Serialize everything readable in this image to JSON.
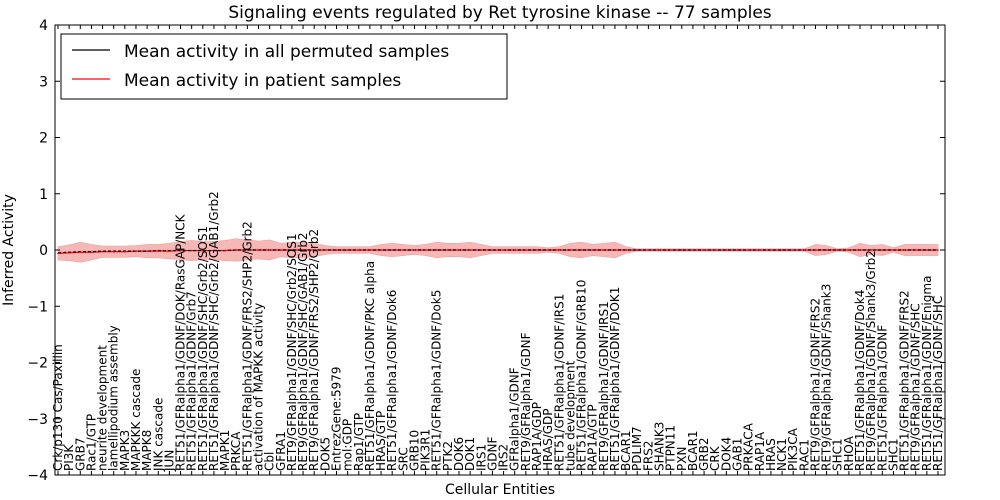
{
  "chart_data": {
    "type": "line",
    "title": "Signaling events regulated by Ret tyrosine kinase -- 77 samples",
    "xlabel": "Cellular Entities",
    "ylabel": "Inferred Activity",
    "ylim": [
      -4,
      4
    ],
    "yticks": [
      -4,
      -3,
      -2,
      -1,
      0,
      1,
      2,
      3,
      4
    ],
    "ytick_labels": [
      "−4",
      "−3",
      "−2",
      "−1",
      "0",
      "1",
      "2",
      "3",
      "4"
    ],
    "grid": false,
    "legend_position": "top-left",
    "colors": {
      "permuted": "#000000",
      "patient": "#ff0000",
      "patient_band": "#f4a0a0",
      "permuted_band": "#c8c8e6"
    },
    "categories": [
      "Crk/p130 Cas/Paxillin",
      "PI3K",
      "GRB7",
      "Rac1/GTP",
      "neurite development",
      "lamellipodium assembly",
      "MAPK3",
      "MAPKKK cascade",
      "MAPK8",
      "JNK cascade",
      "JUN",
      "RET51/GFRalpha1/GDNF/DOK/RasGAP/NCK",
      "RET51/GFRalpha1/GDNF/Grb7",
      "RET51/GFRalpha1/GDNF/SHC/Grb2/SOS1",
      "RET51/GFRalpha1/GDNF/SHC/Grb2/GAB1/Grb2",
      "MAPK1",
      "PRKCA",
      "RET51/GFRalpha1/GDNF/FRS2/SHP2/Grb2",
      "activation of MAPKK activity",
      "Cbl",
      "GFRA1",
      "RET9/GFRalpha1/GDNF/SHC/Grb2/SOS1",
      "RET9/GFRalpha1/GDNF/SHC/GAB1/Grb2",
      "RET9/GFRalpha1/GDNF/FRS2/SHP2/Grb2",
      "DOK5",
      "EntrezGene:5979",
      "mol:GDP",
      "Rap1/GTP",
      "RET51/GFRalpha1/GDNF/PKC alpha",
      "HRAS/GTP",
      "RET51/GFRalpha1/GDNF/Dok6",
      "SRC",
      "GRB10",
      "PIK3R1",
      "RET51/GFRalpha1/GDNF/Dok5",
      "PTK2",
      "DOK6",
      "DOK1",
      "IRS1",
      "GDNF",
      "IRS2",
      "GFRalpha1/GDNF",
      "RET9/GFRalpha1/GDNF",
      "RAP1A/GDP",
      "HRAS/GDP",
      "RET51/GFRalpha1/GDNF/IRS1",
      "tube development",
      "RET51/GFRalpha1/GDNF/GRB10",
      "RAP1A/GTP",
      "RET9/GFRalpha1/GDNF/IRS1",
      "RET51/GFRalpha1/GDNF/DOK1",
      "BCAR1",
      "PDLIM7",
      "FRS2",
      "SHANK3",
      "PTPN11",
      "PXN",
      "BCAR1",
      "GRB2",
      "CRK",
      "DOK4",
      "GAB1",
      "PRKACA",
      "RAP1A",
      "HRAS",
      "NCK1",
      "PIK3CA",
      "RAC1",
      "RET9/GFRalpha1/GDNF/FRS2",
      "RET9/GFRalpha1/GDNF/Shank3",
      "SHC1",
      "RHOA",
      "RET51/GFRalpha1/GDNF/Dok4",
      "RET9/GFRalpha1/GDNF/Shank3/Grb2",
      "RET51/GFRalpha1/GDNF",
      "SHC1",
      "RET51/GFRalpha1/GDNF/FRS2",
      "RET9/GFRalpha1/GDNF/SHC",
      "RET51/GFRalpha1/GDNF/Enigma",
      "RET51/GFRalpha1/GDNF/SHC"
    ],
    "series": [
      {
        "name": "Mean activity in all permuted samples",
        "color": "#000000",
        "values": [
          -0.05,
          -0.04,
          -0.03,
          -0.03,
          -0.02,
          -0.02,
          -0.02,
          -0.02,
          -0.02,
          -0.01,
          -0.01,
          -0.01,
          -0.01,
          -0.01,
          -0.01,
          -0.01,
          0,
          0,
          0,
          0,
          0,
          0,
          0,
          0,
          0,
          0,
          0,
          0,
          0,
          0,
          0,
          0,
          0,
          0,
          0,
          0,
          0,
          0,
          0,
          0,
          0,
          0,
          0,
          0,
          0,
          0,
          0,
          0,
          0,
          0,
          0,
          0,
          0,
          0,
          0,
          0,
          0,
          0,
          0,
          0,
          0,
          0,
          0,
          0,
          0,
          0,
          0,
          0,
          0,
          0,
          0,
          0,
          0,
          0,
          0,
          0,
          0,
          0,
          0,
          0
        ]
      },
      {
        "name": "Mean activity in patient samples",
        "color": "#ff0000",
        "values": [
          -0.06,
          -0.05,
          -0.04,
          -0.04,
          -0.03,
          -0.03,
          -0.03,
          -0.02,
          -0.02,
          -0.02,
          -0.02,
          -0.01,
          -0.01,
          -0.01,
          -0.01,
          -0.01,
          0,
          0,
          0,
          0,
          0,
          0,
          0,
          0,
          0,
          0,
          0,
          0,
          0,
          0,
          0,
          0,
          0,
          0,
          0,
          0,
          0,
          0,
          0,
          0,
          0,
          0,
          0,
          0,
          0,
          0,
          0,
          0,
          0,
          0,
          0,
          0,
          0,
          0,
          0,
          0,
          0,
          0,
          0,
          0,
          0,
          0,
          0,
          0,
          0,
          0,
          0,
          0,
          0,
          0,
          0,
          0,
          0,
          0,
          0,
          0,
          0,
          0,
          0,
          0
        ],
        "spread": [
          0.12,
          0.14,
          0.18,
          0.14,
          0.1,
          0.1,
          0.1,
          0.1,
          0.12,
          0.12,
          0.14,
          0.16,
          0.18,
          0.16,
          0.16,
          0.18,
          0.2,
          0.18,
          0.16,
          0.18,
          0.12,
          0.14,
          0.14,
          0.12,
          0.08,
          0.06,
          0.06,
          0.06,
          0.06,
          0.1,
          0.12,
          0.1,
          0.08,
          0.1,
          0.14,
          0.12,
          0.12,
          0.14,
          0.1,
          0.06,
          0.06,
          0.06,
          0.06,
          0.06,
          0.04,
          0.06,
          0.12,
          0.14,
          0.1,
          0.12,
          0.14,
          0.06,
          0.02,
          0.02,
          0.02,
          0.02,
          0.02,
          0.02,
          0.02,
          0.02,
          0.02,
          0.02,
          0.02,
          0.02,
          0.02,
          0.02,
          0.02,
          0.02,
          0.1,
          0.08,
          0.02,
          0.04,
          0.12,
          0.08,
          0.1,
          0.04,
          0.1,
          0.1,
          0.1,
          0.1
        ]
      }
    ]
  }
}
